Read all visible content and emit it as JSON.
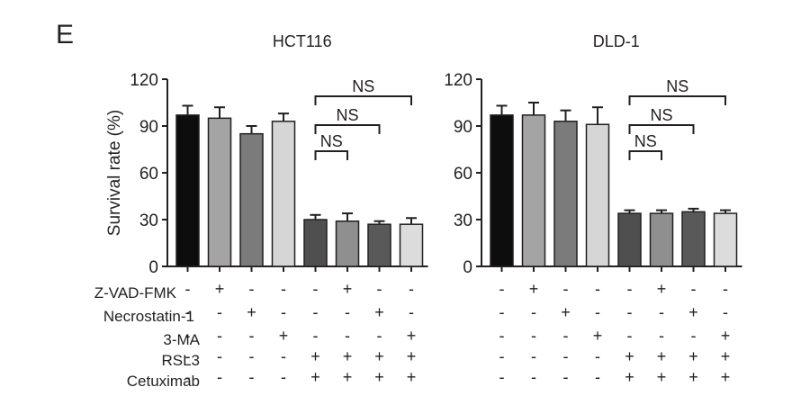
{
  "panel_letter": "E",
  "treatments": [
    "Z-VAD-FMK",
    "Necrostatin-1",
    "3-MA",
    "RSL3",
    "Cetuximab"
  ],
  "colors": {
    "bars": [
      "#0d0d0d",
      "#a4a4a4",
      "#7b7b7b",
      "#d6d6d6",
      "#4f4f4f",
      "#8f8f8f",
      "#595959",
      "#dcdcdc"
    ],
    "axis": "#231f20",
    "bracket": "#231f20"
  },
  "chart_data": [
    {
      "type": "bar",
      "title": "HCT116",
      "ylabel": "Survival rate (%)",
      "ylim": [
        0,
        120
      ],
      "yticks": [
        0,
        30,
        60,
        90,
        120
      ],
      "values": [
        97,
        95,
        85,
        93,
        30,
        29,
        27,
        27
      ],
      "errors": [
        6,
        7,
        5,
        5,
        3,
        5,
        2,
        4
      ],
      "conditions": [
        [
          "-",
          "+",
          "-",
          "-",
          "-",
          "+",
          "-",
          "-"
        ],
        [
          "-",
          "-",
          "+",
          "-",
          "-",
          "-",
          "+",
          "-"
        ],
        [
          "-",
          "-",
          "-",
          "+",
          "-",
          "-",
          "-",
          "+"
        ],
        [
          "-",
          "-",
          "-",
          "-",
          "+",
          "+",
          "+",
          "+"
        ],
        [
          "-",
          "-",
          "-",
          "-",
          "+",
          "+",
          "+",
          "+"
        ]
      ],
      "comparisons": [
        {
          "from": 4,
          "to": 5,
          "label": "NS"
        },
        {
          "from": 4,
          "to": 6,
          "label": "NS"
        },
        {
          "from": 4,
          "to": 7,
          "label": "NS"
        }
      ]
    },
    {
      "type": "bar",
      "title": "DLD-1",
      "ylabel": "",
      "ylim": [
        0,
        120
      ],
      "yticks": [
        0,
        30,
        60,
        90,
        120
      ],
      "values": [
        97,
        97,
        93,
        91,
        34,
        34,
        35,
        34
      ],
      "errors": [
        6,
        8,
        7,
        11,
        2,
        2,
        2,
        2
      ],
      "conditions": [
        [
          "-",
          "+",
          "-",
          "-",
          "-",
          "+",
          "-",
          "-"
        ],
        [
          "-",
          "-",
          "+",
          "-",
          "-",
          "-",
          "+",
          "-"
        ],
        [
          "-",
          "-",
          "-",
          "+",
          "-",
          "-",
          "-",
          "+"
        ],
        [
          "-",
          "-",
          "-",
          "-",
          "+",
          "+",
          "+",
          "+"
        ],
        [
          "-",
          "-",
          "-",
          "-",
          "+",
          "+",
          "+",
          "+"
        ]
      ],
      "comparisons": [
        {
          "from": 4,
          "to": 5,
          "label": "NS"
        },
        {
          "from": 4,
          "to": 6,
          "label": "NS"
        },
        {
          "from": 4,
          "to": 7,
          "label": "NS"
        }
      ]
    }
  ]
}
